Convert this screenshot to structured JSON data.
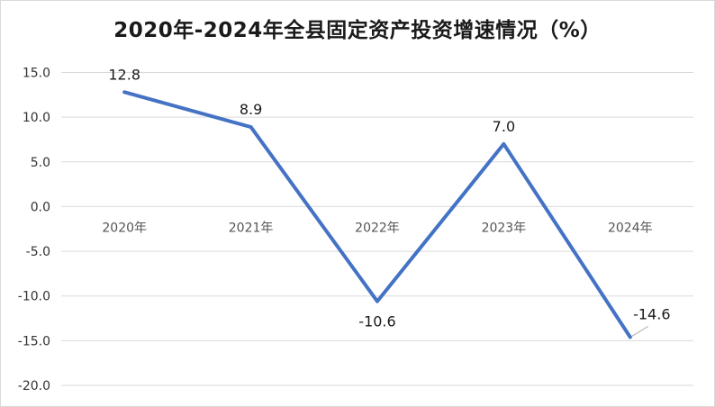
{
  "chart_data": {
    "type": "line",
    "title": "2020年-2024年全县固定资产投资增速情况（%）",
    "categories": [
      "2020年",
      "2021年",
      "2022年",
      "2023年",
      "2024年"
    ],
    "series": [
      {
        "values": [
          12.8,
          8.9,
          -10.6,
          7.0,
          -14.6
        ],
        "color": "#4472c4"
      }
    ],
    "data_labels": [
      "12.8",
      "8.9",
      "-10.6",
      "7.0",
      "-14.6"
    ],
    "ylim": [
      -20,
      15
    ],
    "yticks": [
      15,
      10,
      5,
      0,
      -5,
      -10,
      -15,
      -20
    ],
    "ytick_labels": [
      "15.0",
      "10.0",
      "5.0",
      "0.0",
      "-5.0",
      "-10.0",
      "-15.0",
      "-20.0"
    ],
    "grid": true,
    "legend": "none",
    "gridline_color": "#d9d9d9"
  }
}
